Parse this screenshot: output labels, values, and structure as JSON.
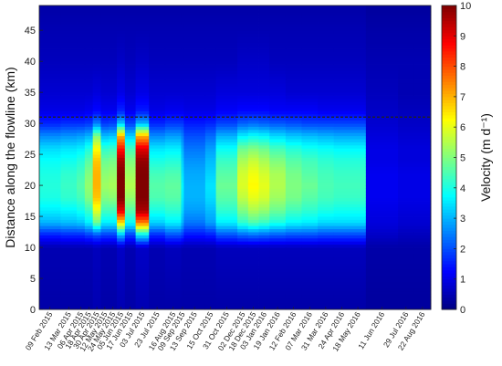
{
  "chart_data": {
    "type": "heatmap",
    "ylabel": "Distance along the flowline (km)",
    "colorbar_label": "Velocity (m d⁻¹)",
    "ylim": [
      0,
      49
    ],
    "yticks": [
      0,
      5,
      10,
      15,
      20,
      25,
      30,
      35,
      40,
      45
    ],
    "clim": [
      0,
      10
    ],
    "cticks": [
      0,
      1,
      2,
      3,
      4,
      5,
      6,
      7,
      8,
      9,
      10
    ],
    "colormap": "jet",
    "dashed_line_km": 31,
    "dashed_line_color": "#222222",
    "x_dates": [
      "09 Feb 2015",
      "13 Mar 2015",
      "06 Apr 2015",
      "18 Apr 2015",
      "30 Apr 2015",
      "12 May 2015",
      "24 May 2015",
      "05 Jun 2015",
      "17 Jun 2015",
      "03 Jul 2015",
      "23 Jul 2015",
      "16 Aug 2015",
      "09 Sep 2015",
      "13 Sep 2015",
      "15 Oct 2015",
      "31 Oct 2015",
      "02 Dec 2015",
      "18 Dec 2015",
      "03 Jan 2016",
      "19 Jan 2016",
      "12 Feb 2016",
      "07 Mar 2016",
      "31 Mar 2016",
      "24 Apr 2016",
      "18 May 2016",
      "11 Jun 2016",
      "29 Jul 2016",
      "22 Aug 2016"
    ],
    "x_day_offsets": [
      0,
      32,
      56,
      68,
      80,
      92,
      104,
      116,
      128,
      144,
      164,
      188,
      212,
      216,
      248,
      264,
      296,
      312,
      328,
      344,
      368,
      392,
      416,
      440,
      464,
      488,
      536,
      560
    ],
    "x_end_offset": 585,
    "profile_km": [
      0,
      10,
      12,
      14,
      16,
      18,
      20,
      22,
      24,
      26,
      28,
      30,
      32,
      35,
      40,
      45,
      49
    ],
    "columns": [
      {
        "v": [
          0.4,
          0.5,
          1.5,
          3.0,
          3.6,
          4.0,
          4.1,
          4.0,
          3.8,
          3.4,
          2.6,
          1.6,
          1.0,
          0.8,
          0.6,
          0.5,
          0.4
        ]
      },
      {
        "v": [
          0.4,
          0.5,
          1.6,
          3.1,
          3.7,
          4.2,
          4.3,
          4.2,
          3.9,
          3.5,
          2.7,
          1.7,
          1.0,
          0.8,
          0.6,
          0.5,
          0.4
        ]
      },
      {
        "v": [
          0.4,
          0.5,
          1.6,
          3.2,
          3.9,
          4.4,
          4.6,
          4.4,
          4.1,
          3.6,
          2.8,
          1.7,
          1.0,
          0.8,
          0.6,
          0.5,
          0.4
        ]
      },
      {
        "v": [
          0.4,
          0.5,
          1.8,
          3.6,
          4.3,
          5.0,
          5.2,
          5.0,
          4.6,
          4.0,
          3.0,
          1.8,
          1.1,
          0.8,
          0.6,
          0.5,
          0.4
        ]
      },
      {
        "v": [
          0.5,
          0.6,
          2.0,
          4.8,
          6.0,
          6.8,
          7.0,
          7.0,
          6.8,
          6.2,
          5.0,
          2.5,
          1.3,
          0.9,
          0.6,
          0.5,
          0.4
        ]
      },
      {
        "v": [
          0.4,
          0.5,
          1.8,
          3.6,
          4.4,
          5.0,
          5.3,
          5.1,
          4.8,
          4.2,
          3.1,
          1.8,
          1.1,
          0.8,
          0.6,
          0.5,
          0.4
        ]
      },
      {
        "v": [
          0.4,
          0.5,
          1.8,
          3.6,
          4.4,
          5.1,
          5.4,
          5.2,
          4.9,
          4.3,
          3.2,
          1.9,
          1.1,
          0.8,
          0.6,
          0.5,
          0.4
        ]
      },
      {
        "v": [
          0.5,
          0.7,
          3.0,
          6.5,
          9.0,
          10.0,
          10.0,
          10.0,
          9.6,
          8.5,
          7.0,
          3.2,
          1.6,
          1.0,
          0.7,
          0.5,
          0.4
        ]
      },
      {
        "v": [
          0.4,
          0.5,
          1.8,
          3.8,
          4.6,
          5.2,
          5.5,
          5.3,
          5.0,
          4.4,
          3.3,
          1.9,
          1.1,
          0.8,
          0.6,
          0.5,
          0.4
        ]
      },
      {
        "v": [
          0.5,
          0.7,
          3.5,
          7.5,
          9.6,
          10.0,
          10.0,
          10.0,
          9.8,
          9.0,
          7.0,
          3.0,
          1.5,
          1.0,
          0.7,
          0.5,
          0.4
        ]
      },
      {
        "v": [
          0.4,
          0.5,
          1.6,
          3.3,
          4.0,
          4.5,
          4.6,
          4.4,
          4.0,
          3.5,
          2.6,
          1.6,
          1.0,
          0.8,
          0.6,
          0.5,
          0.4
        ]
      },
      {
        "v": [
          0.4,
          0.6,
          2.0,
          3.6,
          4.2,
          4.6,
          4.7,
          4.5,
          4.1,
          3.6,
          2.8,
          1.8,
          1.1,
          0.8,
          0.6,
          0.5,
          0.4
        ]
      },
      {
        "v": [
          0.4,
          0.5,
          1.8,
          3.0,
          3.4,
          3.6,
          3.7,
          3.5,
          3.3,
          3.0,
          2.5,
          1.8,
          1.1,
          0.8,
          0.6,
          0.5,
          0.4
        ]
      },
      {
        "v": [
          0.4,
          0.5,
          1.4,
          2.4,
          2.8,
          3.0,
          3.0,
          2.9,
          2.7,
          2.4,
          2.0,
          1.5,
          1.0,
          0.8,
          0.6,
          0.5,
          0.4
        ]
      },
      {
        "v": [
          0.4,
          0.5,
          1.5,
          2.8,
          3.1,
          3.4,
          3.5,
          3.3,
          3.1,
          2.8,
          2.3,
          1.6,
          1.0,
          0.8,
          0.6,
          0.5,
          0.4
        ]
      },
      {
        "v": [
          0.4,
          0.6,
          2.0,
          3.6,
          4.2,
          4.6,
          4.8,
          4.6,
          4.3,
          3.8,
          3.0,
          1.9,
          1.2,
          0.9,
          0.6,
          0.5,
          0.4
        ]
      },
      {
        "v": [
          0.4,
          0.6,
          2.2,
          4.2,
          5.0,
          5.6,
          5.9,
          5.8,
          5.4,
          4.8,
          3.6,
          2.2,
          1.3,
          0.9,
          0.7,
          0.5,
          0.4
        ]
      },
      {
        "v": [
          0.4,
          0.6,
          2.3,
          4.5,
          5.4,
          6.0,
          6.3,
          6.1,
          5.7,
          5.0,
          3.8,
          2.3,
          1.3,
          0.9,
          0.7,
          0.5,
          0.4
        ]
      },
      {
        "v": [
          0.4,
          0.6,
          2.2,
          4.3,
          5.2,
          5.8,
          6.0,
          5.8,
          5.4,
          4.8,
          3.7,
          2.2,
          1.3,
          0.9,
          0.7,
          0.5,
          0.4
        ]
      },
      {
        "v": [
          0.4,
          0.6,
          2.1,
          4.0,
          4.8,
          5.3,
          5.5,
          5.4,
          5.0,
          4.4,
          3.4,
          2.1,
          1.2,
          0.9,
          0.6,
          0.5,
          0.4
        ]
      },
      {
        "v": [
          0.4,
          0.6,
          2.0,
          3.7,
          4.4,
          4.9,
          5.0,
          4.9,
          4.6,
          4.1,
          3.2,
          2.0,
          1.2,
          0.8,
          0.6,
          0.5,
          0.4
        ]
      },
      {
        "v": [
          0.4,
          0.6,
          2.0,
          3.6,
          4.2,
          4.6,
          4.8,
          4.6,
          4.4,
          3.9,
          3.1,
          1.9,
          1.2,
          0.8,
          0.6,
          0.5,
          0.4
        ]
      },
      {
        "v": [
          0.4,
          0.6,
          1.9,
          3.4,
          4.0,
          4.4,
          4.5,
          4.4,
          4.2,
          3.8,
          3.0,
          1.9,
          1.1,
          0.8,
          0.6,
          0.5,
          0.4
        ]
      },
      {
        "v": [
          0.4,
          0.6,
          1.9,
          3.4,
          3.9,
          4.3,
          4.4,
          4.3,
          4.1,
          3.7,
          2.9,
          1.9,
          1.1,
          0.8,
          0.6,
          0.5,
          0.4
        ]
      },
      {
        "v": [
          0.4,
          0.6,
          1.9,
          3.4,
          3.9,
          4.3,
          4.4,
          4.3,
          4.1,
          3.7,
          2.9,
          1.9,
          1.1,
          0.8,
          0.6,
          0.5,
          0.4
        ]
      },
      {
        "v": [
          0.3,
          0.4,
          0.7,
          0.9,
          1.0,
          1.1,
          1.1,
          1.1,
          1.0,
          1.0,
          0.9,
          0.8,
          0.7,
          0.6,
          0.5,
          0.4,
          0.3
        ]
      },
      {
        "v": [
          0.3,
          0.4,
          0.6,
          0.8,
          0.9,
          1.0,
          1.0,
          1.0,
          0.9,
          0.9,
          0.8,
          0.7,
          0.6,
          0.5,
          0.5,
          0.4,
          0.3
        ]
      },
      {
        "v": [
          0.3,
          0.4,
          0.6,
          0.8,
          0.9,
          1.0,
          1.0,
          1.0,
          0.9,
          0.9,
          0.8,
          0.7,
          0.6,
          0.5,
          0.5,
          0.4,
          0.3
        ]
      }
    ]
  }
}
